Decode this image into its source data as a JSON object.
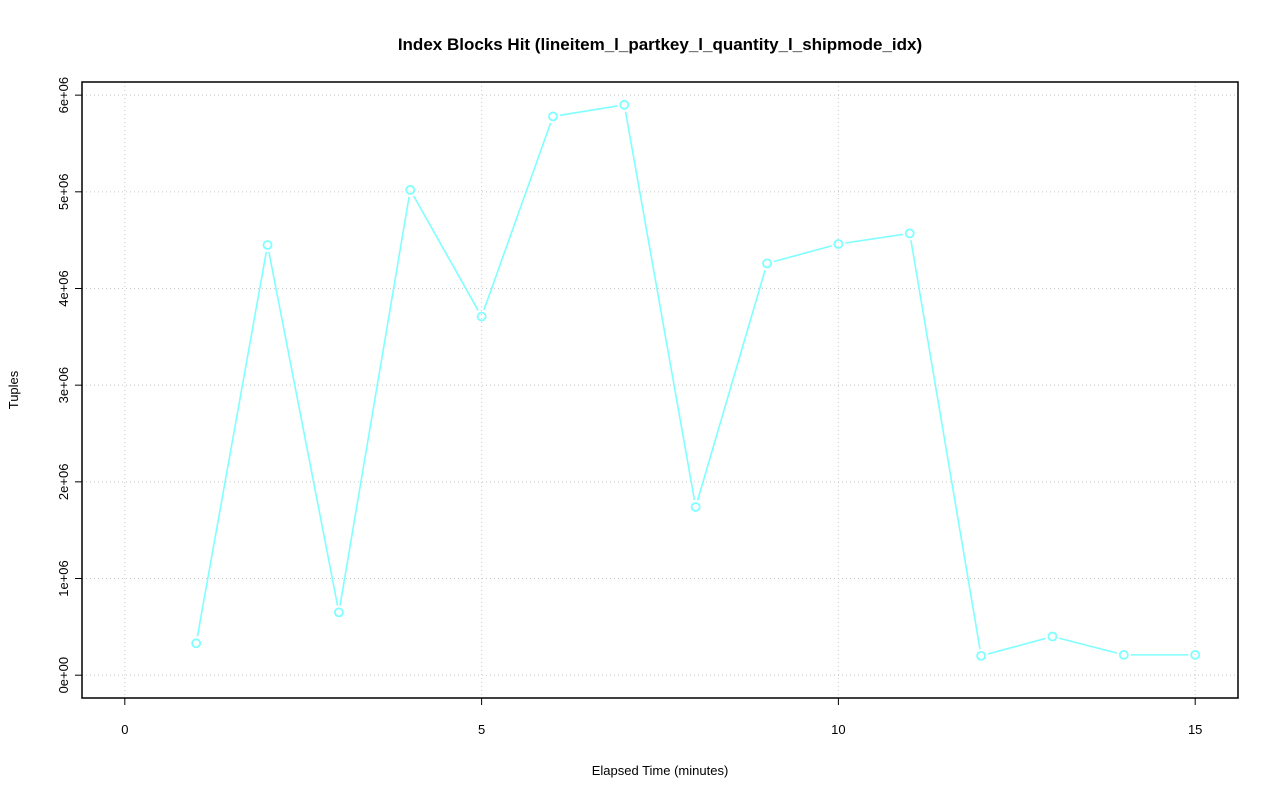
{
  "chart_data": {
    "type": "line",
    "title": "Index Blocks Hit (lineitem_l_partkey_l_quantity_l_shipmode_idx)",
    "xlabel": "Elapsed Time (minutes)",
    "ylabel": "Tuples",
    "xlim": [
      0,
      15
    ],
    "ylim": [
      0,
      5900000
    ],
    "x_ticks": [
      0,
      5,
      10,
      15
    ],
    "x_tick_labels": [
      "0",
      "5",
      "10",
      "15"
    ],
    "y_ticks": [
      0,
      1000000,
      2000000,
      3000000,
      4000000,
      5000000,
      6000000
    ],
    "y_tick_labels": [
      "0e+00",
      "1e+06",
      "2e+06",
      "3e+06",
      "4e+06",
      "5e+06",
      "6e+06"
    ],
    "grid": true,
    "line_style": "points connected by lines",
    "series": [
      {
        "color": "#7FFFFF",
        "x": [
          1,
          2,
          3,
          4,
          5,
          6,
          7,
          8,
          9,
          10,
          11,
          12,
          13,
          14,
          15
        ],
        "y": [
          330000,
          4450000,
          650000,
          5020000,
          3710000,
          5780000,
          5900000,
          1740000,
          4260000,
          4460000,
          4570000,
          200000,
          400000,
          210000,
          210000
        ]
      }
    ]
  }
}
